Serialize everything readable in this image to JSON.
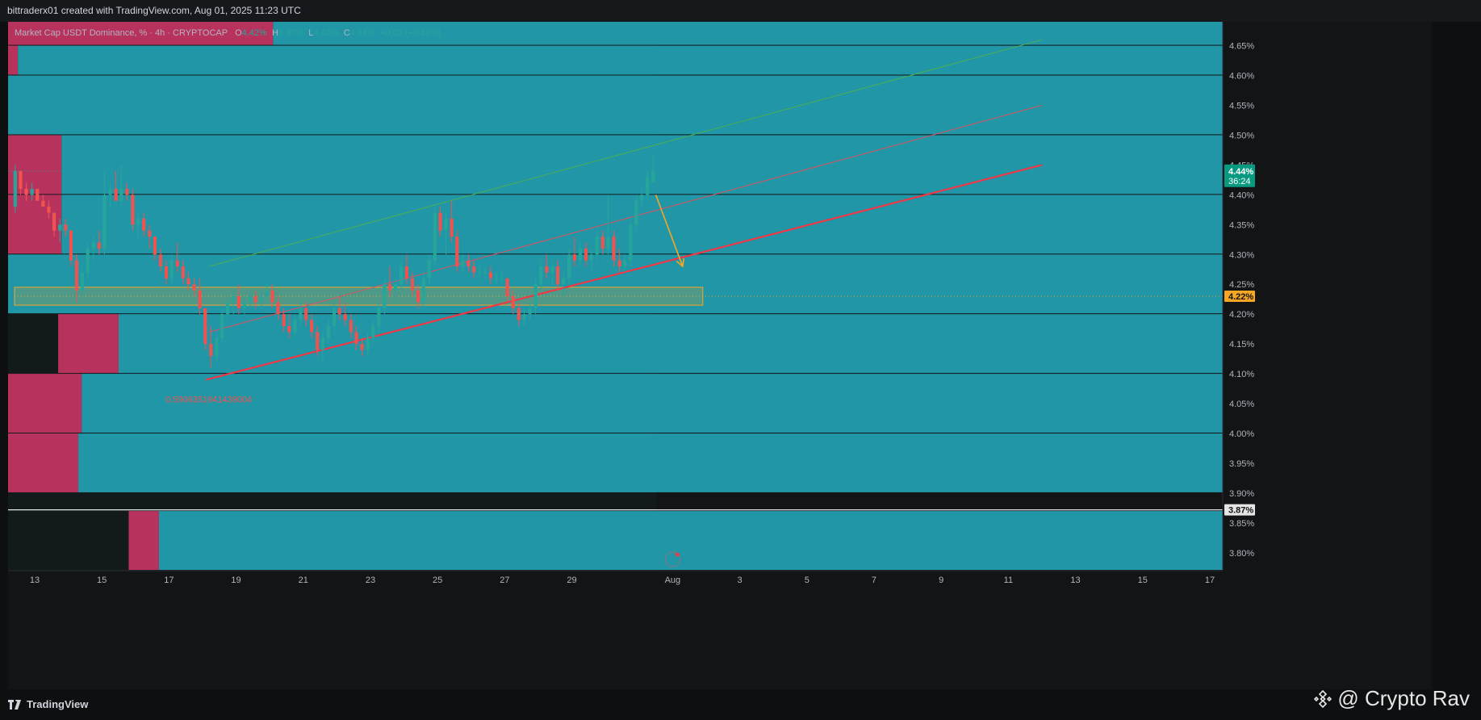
{
  "header": {
    "attribution": "bittraderx01 created with TradingView.com, Aug 01, 2025 11:23 UTC"
  },
  "legend": {
    "symbol": "Market Cap USDT Dominance, % · 4h · CRYPTOCAP",
    "o_label": "O",
    "o_value": "4.42%",
    "h_label": "H",
    "h_value": "4.47%",
    "l_label": "L",
    "l_value": "4.42%",
    "c_label": "C",
    "c_value": "4.44%",
    "change": "+0.02 (+0.34%)"
  },
  "price_tags": {
    "last_price": "4.44%",
    "countdown": "36:24",
    "zone_price": "4.22%",
    "white_line_price": "3.87%"
  },
  "annotation": {
    "fib_label": "0.5906351941439004"
  },
  "footer": {
    "brand": "TradingView",
    "watermark": "@ Crypto Rav"
  },
  "colors": {
    "background": "#0e0f11",
    "up": "#26a69a",
    "down": "#ef5350",
    "support_line": "#f23645",
    "zone": "#f5a623",
    "vp_up": "#2196a6",
    "vp_down": "#b8325e"
  },
  "chart_data": {
    "type": "candlestick",
    "title": "Market Cap USDT Dominance, % · 4h · CRYPTOCAP",
    "ylim": [
      3.77,
      4.69
    ],
    "y_ticks": [
      "4.65%",
      "4.60%",
      "4.55%",
      "4.50%",
      "4.45%",
      "4.40%",
      "4.35%",
      "4.30%",
      "4.25%",
      "4.20%",
      "4.15%",
      "4.10%",
      "4.05%",
      "4.00%",
      "3.95%",
      "3.90%",
      "3.85%",
      "3.80%"
    ],
    "x_ticks": [
      "13",
      "15",
      "17",
      "19",
      "21",
      "23",
      "25",
      "27",
      "29",
      "Aug",
      "3",
      "5",
      "7",
      "9",
      "11",
      "13",
      "15",
      "17"
    ],
    "x_range_days": [
      12.4,
      17.8
    ],
    "candles": [
      {
        "t": 12.42,
        "o": 4.38,
        "h": 4.45,
        "l": 4.37,
        "c": 4.44
      },
      {
        "t": 12.58,
        "o": 4.44,
        "h": 4.44,
        "l": 4.4,
        "c": 4.41
      },
      {
        "t": 12.75,
        "o": 4.41,
        "h": 4.42,
        "l": 4.39,
        "c": 4.4
      },
      {
        "t": 12.92,
        "o": 4.4,
        "h": 4.42,
        "l": 4.39,
        "c": 4.41
      },
      {
        "t": 13.08,
        "o": 4.41,
        "h": 4.41,
        "l": 4.39,
        "c": 4.39
      },
      {
        "t": 13.25,
        "o": 4.39,
        "h": 4.4,
        "l": 4.38,
        "c": 4.38
      },
      {
        "t": 13.42,
        "o": 4.38,
        "h": 4.39,
        "l": 4.36,
        "c": 4.37
      },
      {
        "t": 13.58,
        "o": 4.37,
        "h": 4.37,
        "l": 4.33,
        "c": 4.34
      },
      {
        "t": 13.75,
        "o": 4.34,
        "h": 4.36,
        "l": 4.32,
        "c": 4.35
      },
      {
        "t": 13.92,
        "o": 4.35,
        "h": 4.36,
        "l": 4.33,
        "c": 4.34
      },
      {
        "t": 14.08,
        "o": 4.34,
        "h": 4.34,
        "l": 4.28,
        "c": 4.29
      },
      {
        "t": 14.25,
        "o": 4.29,
        "h": 4.3,
        "l": 4.22,
        "c": 4.24
      },
      {
        "t": 14.42,
        "o": 4.24,
        "h": 4.28,
        "l": 4.23,
        "c": 4.27
      },
      {
        "t": 14.58,
        "o": 4.27,
        "h": 4.32,
        "l": 4.26,
        "c": 4.31
      },
      {
        "t": 14.75,
        "o": 4.31,
        "h": 4.33,
        "l": 4.29,
        "c": 4.32
      },
      {
        "t": 14.92,
        "o": 4.32,
        "h": 4.34,
        "l": 4.3,
        "c": 4.31
      },
      {
        "t": 15.08,
        "o": 4.31,
        "h": 4.44,
        "l": 4.3,
        "c": 4.4
      },
      {
        "t": 15.25,
        "o": 4.4,
        "h": 4.42,
        "l": 4.38,
        "c": 4.41
      },
      {
        "t": 15.42,
        "o": 4.41,
        "h": 4.44,
        "l": 4.39,
        "c": 4.39
      },
      {
        "t": 15.58,
        "o": 4.39,
        "h": 4.45,
        "l": 4.38,
        "c": 4.41
      },
      {
        "t": 15.75,
        "o": 4.41,
        "h": 4.42,
        "l": 4.39,
        "c": 4.4
      },
      {
        "t": 15.92,
        "o": 4.4,
        "h": 4.41,
        "l": 4.34,
        "c": 4.35
      },
      {
        "t": 16.08,
        "o": 4.35,
        "h": 4.37,
        "l": 4.33,
        "c": 4.36
      },
      {
        "t": 16.25,
        "o": 4.36,
        "h": 4.37,
        "l": 4.33,
        "c": 4.34
      },
      {
        "t": 16.42,
        "o": 4.34,
        "h": 4.35,
        "l": 4.31,
        "c": 4.33
      },
      {
        "t": 16.58,
        "o": 4.33,
        "h": 4.33,
        "l": 4.29,
        "c": 4.3
      },
      {
        "t": 16.75,
        "o": 4.3,
        "h": 4.31,
        "l": 4.27,
        "c": 4.28
      },
      {
        "t": 16.92,
        "o": 4.28,
        "h": 4.29,
        "l": 4.25,
        "c": 4.26
      },
      {
        "t": 17.08,
        "o": 4.26,
        "h": 4.3,
        "l": 4.25,
        "c": 4.29
      },
      {
        "t": 17.25,
        "o": 4.29,
        "h": 4.32,
        "l": 4.27,
        "c": 4.28
      },
      {
        "t": 17.42,
        "o": 4.28,
        "h": 4.29,
        "l": 4.25,
        "c": 4.26
      },
      {
        "t": 17.58,
        "o": 4.26,
        "h": 4.27,
        "l": 4.24,
        "c": 4.25
      },
      {
        "t": 17.75,
        "o": 4.25,
        "h": 4.26,
        "l": 4.23,
        "c": 4.24
      },
      {
        "t": 17.92,
        "o": 4.24,
        "h": 4.26,
        "l": 4.2,
        "c": 4.21
      },
      {
        "t": 18.08,
        "o": 4.21,
        "h": 4.21,
        "l": 4.14,
        "c": 4.15
      },
      {
        "t": 18.25,
        "o": 4.15,
        "h": 4.18,
        "l": 4.11,
        "c": 4.13
      },
      {
        "t": 18.42,
        "o": 4.13,
        "h": 4.17,
        "l": 4.12,
        "c": 4.16
      },
      {
        "t": 18.58,
        "o": 4.16,
        "h": 4.21,
        "l": 4.15,
        "c": 4.2
      },
      {
        "t": 18.75,
        "o": 4.2,
        "h": 4.23,
        "l": 4.19,
        "c": 4.22
      },
      {
        "t": 18.92,
        "o": 4.22,
        "h": 4.24,
        "l": 4.2,
        "c": 4.23
      },
      {
        "t": 19.08,
        "o": 4.23,
        "h": 4.25,
        "l": 4.2,
        "c": 4.21
      },
      {
        "t": 19.25,
        "o": 4.21,
        "h": 4.23,
        "l": 4.2,
        "c": 4.22
      },
      {
        "t": 19.42,
        "o": 4.22,
        "h": 4.24,
        "l": 4.21,
        "c": 4.23
      },
      {
        "t": 19.58,
        "o": 4.23,
        "h": 4.24,
        "l": 4.21,
        "c": 4.22
      },
      {
        "t": 19.75,
        "o": 4.22,
        "h": 4.24,
        "l": 4.21,
        "c": 4.23
      },
      {
        "t": 19.92,
        "o": 4.23,
        "h": 4.25,
        "l": 4.22,
        "c": 4.24
      },
      {
        "t": 20.08,
        "o": 4.24,
        "h": 4.25,
        "l": 4.21,
        "c": 4.22
      },
      {
        "t": 20.25,
        "o": 4.22,
        "h": 4.23,
        "l": 4.19,
        "c": 4.2
      },
      {
        "t": 20.42,
        "o": 4.2,
        "h": 4.21,
        "l": 4.17,
        "c": 4.18
      },
      {
        "t": 20.58,
        "o": 4.18,
        "h": 4.2,
        "l": 4.16,
        "c": 4.17
      },
      {
        "t": 20.75,
        "o": 4.17,
        "h": 4.2,
        "l": 4.16,
        "c": 4.19
      },
      {
        "t": 20.92,
        "o": 4.19,
        "h": 4.22,
        "l": 4.18,
        "c": 4.21
      },
      {
        "t": 21.08,
        "o": 4.21,
        "h": 4.22,
        "l": 4.18,
        "c": 4.19
      },
      {
        "t": 21.25,
        "o": 4.19,
        "h": 4.2,
        "l": 4.16,
        "c": 4.17
      },
      {
        "t": 21.42,
        "o": 4.17,
        "h": 4.18,
        "l": 4.13,
        "c": 4.14
      },
      {
        "t": 21.58,
        "o": 4.14,
        "h": 4.17,
        "l": 4.12,
        "c": 4.16
      },
      {
        "t": 21.75,
        "o": 4.16,
        "h": 4.19,
        "l": 4.15,
        "c": 4.18
      },
      {
        "t": 21.92,
        "o": 4.18,
        "h": 4.22,
        "l": 4.17,
        "c": 4.21
      },
      {
        "t": 22.08,
        "o": 4.21,
        "h": 4.23,
        "l": 4.19,
        "c": 4.2
      },
      {
        "t": 22.25,
        "o": 4.2,
        "h": 4.22,
        "l": 4.18,
        "c": 4.19
      },
      {
        "t": 22.42,
        "o": 4.19,
        "h": 4.2,
        "l": 4.16,
        "c": 4.17
      },
      {
        "t": 22.58,
        "o": 4.17,
        "h": 4.18,
        "l": 4.14,
        "c": 4.15
      },
      {
        "t": 22.75,
        "o": 4.15,
        "h": 4.16,
        "l": 4.13,
        "c": 4.14
      },
      {
        "t": 22.92,
        "o": 4.14,
        "h": 4.17,
        "l": 4.13,
        "c": 4.16
      },
      {
        "t": 23.08,
        "o": 4.16,
        "h": 4.19,
        "l": 4.15,
        "c": 4.18
      },
      {
        "t": 23.25,
        "o": 4.18,
        "h": 4.22,
        "l": 4.17,
        "c": 4.21
      },
      {
        "t": 23.42,
        "o": 4.21,
        "h": 4.26,
        "l": 4.2,
        "c": 4.25
      },
      {
        "t": 23.58,
        "o": 4.25,
        "h": 4.28,
        "l": 4.23,
        "c": 4.24
      },
      {
        "t": 23.75,
        "o": 4.24,
        "h": 4.26,
        "l": 4.22,
        "c": 4.25
      },
      {
        "t": 23.92,
        "o": 4.25,
        "h": 4.29,
        "l": 4.24,
        "c": 4.28
      },
      {
        "t": 24.08,
        "o": 4.28,
        "h": 4.3,
        "l": 4.25,
        "c": 4.26
      },
      {
        "t": 24.25,
        "o": 4.26,
        "h": 4.27,
        "l": 4.23,
        "c": 4.24
      },
      {
        "t": 24.42,
        "o": 4.24,
        "h": 4.25,
        "l": 4.21,
        "c": 4.22
      },
      {
        "t": 24.58,
        "o": 4.22,
        "h": 4.27,
        "l": 4.21,
        "c": 4.26
      },
      {
        "t": 24.75,
        "o": 4.26,
        "h": 4.3,
        "l": 4.25,
        "c": 4.29
      },
      {
        "t": 24.92,
        "o": 4.29,
        "h": 4.38,
        "l": 4.28,
        "c": 4.37
      },
      {
        "t": 25.08,
        "o": 4.37,
        "h": 4.38,
        "l": 4.33,
        "c": 4.34
      },
      {
        "t": 25.25,
        "o": 4.34,
        "h": 4.37,
        "l": 4.3,
        "c": 4.36
      },
      {
        "t": 25.42,
        "o": 4.36,
        "h": 4.39,
        "l": 4.32,
        "c": 4.33
      },
      {
        "t": 25.58,
        "o": 4.33,
        "h": 4.34,
        "l": 4.27,
        "c": 4.28
      },
      {
        "t": 25.75,
        "o": 4.28,
        "h": 4.3,
        "l": 4.27,
        "c": 4.29
      },
      {
        "t": 25.92,
        "o": 4.29,
        "h": 4.3,
        "l": 4.27,
        "c": 4.28
      },
      {
        "t": 26.08,
        "o": 4.28,
        "h": 4.29,
        "l": 4.26,
        "c": 4.27
      },
      {
        "t": 26.25,
        "o": 4.27,
        "h": 4.28,
        "l": 4.26,
        "c": 4.27
      },
      {
        "t": 26.42,
        "o": 4.27,
        "h": 4.28,
        "l": 4.26,
        "c": 4.27
      },
      {
        "t": 26.58,
        "o": 4.27,
        "h": 4.28,
        "l": 4.25,
        "c": 4.26
      },
      {
        "t": 26.75,
        "o": 4.26,
        "h": 4.27,
        "l": 4.25,
        "c": 4.26
      },
      {
        "t": 26.92,
        "o": 4.26,
        "h": 4.27,
        "l": 4.25,
        "c": 4.26
      },
      {
        "t": 27.08,
        "o": 4.26,
        "h": 4.26,
        "l": 4.22,
        "c": 4.23
      },
      {
        "t": 27.25,
        "o": 4.23,
        "h": 4.24,
        "l": 4.2,
        "c": 4.21
      },
      {
        "t": 27.42,
        "o": 4.21,
        "h": 4.22,
        "l": 4.18,
        "c": 4.19
      },
      {
        "t": 27.58,
        "o": 4.19,
        "h": 4.21,
        "l": 4.18,
        "c": 4.2
      },
      {
        "t": 27.75,
        "o": 4.2,
        "h": 4.22,
        "l": 4.19,
        "c": 4.21
      },
      {
        "t": 27.92,
        "o": 4.21,
        "h": 4.26,
        "l": 4.2,
        "c": 4.25
      },
      {
        "t": 28.08,
        "o": 4.25,
        "h": 4.29,
        "l": 4.24,
        "c": 4.28
      },
      {
        "t": 28.25,
        "o": 4.28,
        "h": 4.3,
        "l": 4.26,
        "c": 4.27
      },
      {
        "t": 28.42,
        "o": 4.27,
        "h": 4.29,
        "l": 4.25,
        "c": 4.28
      },
      {
        "t": 28.58,
        "o": 4.28,
        "h": 4.29,
        "l": 4.24,
        "c": 4.25
      },
      {
        "t": 28.75,
        "o": 4.25,
        "h": 4.27,
        "l": 4.23,
        "c": 4.26
      },
      {
        "t": 28.92,
        "o": 4.26,
        "h": 4.31,
        "l": 4.25,
        "c": 4.3
      },
      {
        "t": 29.08,
        "o": 4.3,
        "h": 4.33,
        "l": 4.28,
        "c": 4.29
      },
      {
        "t": 29.25,
        "o": 4.29,
        "h": 4.32,
        "l": 4.28,
        "c": 4.31
      },
      {
        "t": 29.42,
        "o": 4.31,
        "h": 4.32,
        "l": 4.28,
        "c": 4.29
      },
      {
        "t": 29.58,
        "o": 4.29,
        "h": 4.31,
        "l": 4.27,
        "c": 4.3
      },
      {
        "t": 29.75,
        "o": 4.3,
        "h": 4.34,
        "l": 4.29,
        "c": 4.33
      },
      {
        "t": 29.92,
        "o": 4.33,
        "h": 4.34,
        "l": 4.3,
        "c": 4.31
      },
      {
        "t": 30.08,
        "o": 4.31,
        "h": 4.4,
        "l": 4.3,
        "c": 4.33
      },
      {
        "t": 30.25,
        "o": 4.33,
        "h": 4.34,
        "l": 4.28,
        "c": 4.29
      },
      {
        "t": 30.42,
        "o": 4.29,
        "h": 4.31,
        "l": 4.27,
        "c": 4.28
      },
      {
        "t": 30.58,
        "o": 4.28,
        "h": 4.3,
        "l": 4.27,
        "c": 4.29
      },
      {
        "t": 30.75,
        "o": 4.29,
        "h": 4.36,
        "l": 4.28,
        "c": 4.35
      },
      {
        "t": 30.92,
        "o": 4.35,
        "h": 4.4,
        "l": 4.34,
        "c": 4.39
      },
      {
        "t": 31.08,
        "o": 4.39,
        "h": 4.41,
        "l": 4.38,
        "c": 4.4
      },
      {
        "t": 31.25,
        "o": 4.4,
        "h": 4.44,
        "l": 4.39,
        "c": 4.43
      },
      {
        "t": 31.42,
        "o": 4.42,
        "h": 4.47,
        "l": 4.42,
        "c": 4.44
      }
    ],
    "volume_profile": [
      {
        "low": 4.65,
        "high": 4.7,
        "buy_end_day": 20.1,
        "sell_start_day": 11.0
      },
      {
        "low": 4.6,
        "high": 4.65,
        "buy_end_day": 12.5,
        "sell_start_day": 8.2
      },
      {
        "low": 4.5,
        "high": 4.6,
        "buy_end_day": 12.2,
        "sell_start_day": 7.1
      },
      {
        "low": 4.4,
        "high": 4.5,
        "buy_end_day": 13.8,
        "sell_start_day": 10.4
      },
      {
        "low": 4.3,
        "high": 4.4,
        "buy_end_day": 13.8,
        "sell_start_day": 9.6
      },
      {
        "low": 4.2,
        "high": 4.3,
        "buy_end_day": 12.0,
        "sell_start_day": 6.8
      },
      {
        "low": 4.1,
        "high": 4.2,
        "buy_end_day": 15.5,
        "sell_start_day": 13.7
      },
      {
        "low": 4.0,
        "high": 4.1,
        "buy_end_day": 14.4,
        "sell_start_day": 11.5
      },
      {
        "low": 3.9,
        "high": 4.0,
        "buy_end_day": 14.3,
        "sell_start_day": 11.1
      },
      {
        "low": 3.77,
        "high": 3.87,
        "buy_end_day": 16.7,
        "sell_start_day": 15.8
      }
    ],
    "lines": {
      "support": {
        "from": [
          18.1,
          4.09
        ],
        "to": [
          43.0,
          4.45
        ]
      },
      "mid_channel": {
        "from": [
          18.2,
          4.17
        ],
        "to": [
          43.0,
          4.55
        ]
      },
      "upper_channel": {
        "from": [
          18.2,
          4.28
        ],
        "to": [
          43.0,
          4.66
        ]
      },
      "fib_anchor": {
        "t": 18.1,
        "price": 4.09
      },
      "projection_arrow": {
        "from": [
          31.5,
          4.4
        ],
        "to": [
          32.3,
          4.28
        ]
      }
    },
    "zone": {
      "low": 4.215,
      "high": 4.245,
      "from_day": 12.4,
      "to_day": 32.9
    },
    "white_level": 3.872,
    "last_price_line": 4.44
  }
}
